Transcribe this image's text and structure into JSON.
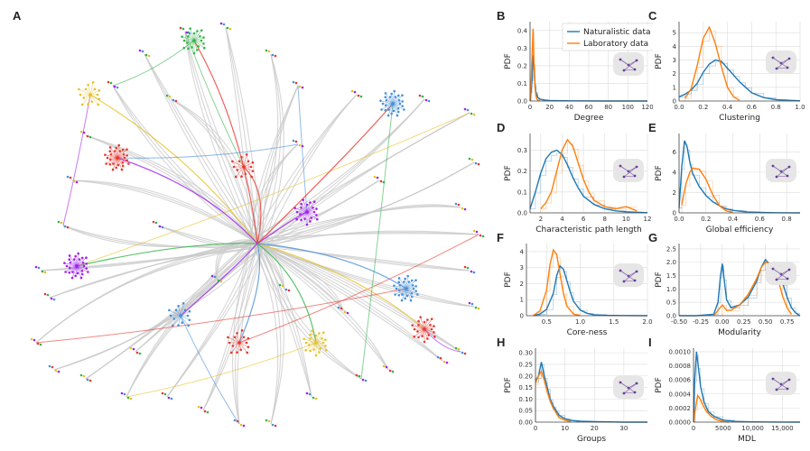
{
  "panel_letters": [
    "A",
    "B",
    "C",
    "D",
    "E",
    "F",
    "G",
    "H",
    "I"
  ],
  "colors": {
    "naturalistic": "#1f77b4",
    "laboratory": "#ff7f0e",
    "network_edge": "#c8c8c8",
    "cluster_red": "#e8382f",
    "cluster_purple": "#a020f0",
    "cluster_green": "#33b54a",
    "cluster_blue": "#4a90d9",
    "cluster_yellow": "#e6c229",
    "inset_bg": "#e6e6e6"
  },
  "legend": {
    "naturalistic": "Naturalistic data",
    "laboratory": "Laboratory data"
  },
  "chart_data": [
    {
      "panel": "B",
      "type": "line",
      "xlabel": "Degree",
      "ylabel": "PDF",
      "xlim": [
        0,
        120
      ],
      "ylim": [
        0,
        0.45
      ],
      "xticks": [
        "0",
        "20",
        "40",
        "60",
        "80",
        "100",
        "120"
      ],
      "yticks": [
        "0.0",
        "0.1",
        "0.2",
        "0.3",
        "0.4"
      ],
      "xtickvals": [
        0,
        20,
        40,
        60,
        80,
        100,
        120
      ],
      "ytickvals": [
        0,
        0.1,
        0.2,
        0.3,
        0.4
      ],
      "legend": true,
      "series": [
        {
          "name": "Naturalistic data",
          "x": [
            0,
            1,
            2,
            3,
            4,
            5,
            6,
            8,
            10,
            15,
            20,
            40,
            80,
            120
          ],
          "y": [
            0,
            0.05,
            0.12,
            0.26,
            0.2,
            0.1,
            0.05,
            0.02,
            0.01,
            0.005,
            0.003,
            0.001,
            0,
            0
          ]
        },
        {
          "name": "Laboratory data",
          "x": [
            0,
            1,
            2,
            3,
            4,
            5,
            6,
            7,
            8,
            10
          ],
          "y": [
            0,
            0.1,
            0.25,
            0.41,
            0.22,
            0.08,
            0.03,
            0.01,
            0.005,
            0
          ]
        }
      ]
    },
    {
      "panel": "C",
      "type": "line",
      "xlabel": "Clustering",
      "ylabel": "PDF",
      "xlim": [
        0,
        1
      ],
      "ylim": [
        0,
        5.8
      ],
      "xticks": [
        "0.0",
        "0.2",
        "0.4",
        "0.6",
        "0.8",
        "1.0"
      ],
      "yticks": [
        "0",
        "1",
        "2",
        "3",
        "4",
        "5"
      ],
      "xtickvals": [
        0,
        0.2,
        0.4,
        0.6,
        0.8,
        1.0
      ],
      "ytickvals": [
        0,
        1,
        2,
        3,
        4,
        5
      ],
      "series": [
        {
          "name": "Naturalistic data",
          "x": [
            0,
            0.05,
            0.1,
            0.15,
            0.2,
            0.25,
            0.3,
            0.35,
            0.4,
            0.45,
            0.5,
            0.55,
            0.6,
            0.7,
            0.8,
            0.9,
            1.0
          ],
          "y": [
            0.3,
            0.5,
            0.8,
            1.3,
            2.1,
            2.7,
            3.0,
            2.9,
            2.4,
            1.9,
            1.4,
            1.0,
            0.6,
            0.25,
            0.1,
            0.05,
            0.02
          ]
        },
        {
          "name": "Laboratory data",
          "x": [
            0.05,
            0.1,
            0.15,
            0.2,
            0.25,
            0.3,
            0.35,
            0.4,
            0.45,
            0.5
          ],
          "y": [
            0.2,
            0.9,
            2.6,
            4.6,
            5.4,
            4.2,
            2.5,
            1.0,
            0.3,
            0.05
          ]
        }
      ]
    },
    {
      "panel": "D",
      "type": "line",
      "xlabel": "Characteristic path length",
      "ylabel": "PDF",
      "xlim": [
        1,
        12
      ],
      "ylim": [
        0,
        0.38
      ],
      "xticks": [
        "2",
        "4",
        "6",
        "8",
        "10",
        "12"
      ],
      "yticks": [
        "0.0",
        "0.1",
        "0.2",
        "0.3"
      ],
      "xtickvals": [
        2,
        4,
        6,
        8,
        10,
        12
      ],
      "ytickvals": [
        0,
        0.1,
        0.2,
        0.3
      ],
      "series": [
        {
          "name": "Naturalistic data",
          "x": [
            1,
            1.5,
            2,
            2.5,
            3,
            3.5,
            4,
            4.5,
            5,
            5.5,
            6,
            7,
            8,
            9,
            10,
            11,
            12
          ],
          "y": [
            0.02,
            0.1,
            0.19,
            0.26,
            0.29,
            0.3,
            0.28,
            0.23,
            0.17,
            0.12,
            0.08,
            0.04,
            0.02,
            0.01,
            0.005,
            0.003,
            0.001
          ]
        },
        {
          "name": "Laboratory data",
          "x": [
            2,
            2.5,
            3,
            3.5,
            4,
            4.5,
            5,
            5.5,
            6,
            6.5,
            7,
            8,
            9,
            10,
            11
          ],
          "y": [
            0.02,
            0.05,
            0.1,
            0.2,
            0.3,
            0.35,
            0.32,
            0.24,
            0.16,
            0.1,
            0.06,
            0.03,
            0.02,
            0.03,
            0.01
          ]
        }
      ]
    },
    {
      "panel": "E",
      "type": "line",
      "xlabel": "Global efficiency",
      "ylabel": "PDF",
      "xlim": [
        0,
        0.9
      ],
      "ylim": [
        0,
        7.8
      ],
      "xticks": [
        "0.0",
        "0.2",
        "0.4",
        "0.6",
        "0.8"
      ],
      "yticks": [
        "0",
        "2",
        "4",
        "6"
      ],
      "xtickvals": [
        0,
        0.2,
        0.4,
        0.6,
        0.8
      ],
      "ytickvals": [
        0,
        2,
        4,
        6
      ],
      "series": [
        {
          "name": "Naturalistic data",
          "x": [
            0,
            0.02,
            0.04,
            0.06,
            0.08,
            0.1,
            0.15,
            0.2,
            0.25,
            0.3,
            0.35,
            0.4,
            0.5,
            0.6,
            0.7,
            0.8,
            0.9
          ],
          "y": [
            0.5,
            4.5,
            7.1,
            6.5,
            5.0,
            3.9,
            2.6,
            1.7,
            1.1,
            0.7,
            0.4,
            0.25,
            0.1,
            0.05,
            0.02,
            0.01,
            0
          ]
        },
        {
          "name": "Laboratory data",
          "x": [
            0.02,
            0.05,
            0.08,
            0.1,
            0.15,
            0.2,
            0.25,
            0.3,
            0.35,
            0.4
          ],
          "y": [
            0.8,
            2.8,
            4.0,
            4.4,
            4.3,
            3.3,
            1.8,
            0.7,
            0.2,
            0.05
          ]
        }
      ]
    },
    {
      "panel": "F",
      "type": "line",
      "xlabel": "Core-ness",
      "ylabel": "PDF",
      "xlim": [
        0.2,
        2.0
      ],
      "ylim": [
        0,
        4.5
      ],
      "xticks": [
        "0.5",
        "1.0",
        "1.5",
        "2.0"
      ],
      "yticks": [
        "0",
        "1",
        "2",
        "3",
        "4"
      ],
      "xtickvals": [
        0.5,
        1.0,
        1.5,
        2.0
      ],
      "ytickvals": [
        0,
        1,
        2,
        3,
        4
      ],
      "series": [
        {
          "name": "Naturalistic data",
          "x": [
            0.3,
            0.4,
            0.5,
            0.6,
            0.65,
            0.7,
            0.75,
            0.8,
            0.85,
            0.9,
            1.0,
            1.1,
            1.2,
            1.4,
            1.6,
            2.0
          ],
          "y": [
            0,
            0.1,
            0.4,
            1.4,
            2.5,
            3.1,
            2.9,
            2.2,
            1.5,
            0.9,
            0.35,
            0.15,
            0.06,
            0.02,
            0.01,
            0
          ]
        },
        {
          "name": "Laboratory data",
          "x": [
            0.3,
            0.4,
            0.5,
            0.55,
            0.6,
            0.65,
            0.7,
            0.75,
            0.8,
            0.9,
            1.0
          ],
          "y": [
            0,
            0.3,
            1.6,
            3.2,
            4.1,
            3.8,
            2.6,
            1.4,
            0.6,
            0.1,
            0
          ]
        }
      ]
    },
    {
      "panel": "G",
      "type": "line",
      "xlabel": "Modularity",
      "ylabel": "PDF",
      "xlim": [
        -0.5,
        0.9
      ],
      "ylim": [
        0,
        2.7
      ],
      "xticks": [
        "-0.50",
        "-0.25",
        "0.00",
        "0.25",
        "0.50",
        "0.75"
      ],
      "yticks": [
        "0.0",
        "0.5",
        "1.0",
        "1.5",
        "2.0",
        "2.5"
      ],
      "xtickvals": [
        -0.5,
        -0.25,
        0,
        0.25,
        0.5,
        0.75
      ],
      "ytickvals": [
        0,
        0.5,
        1.0,
        1.5,
        2.0,
        2.5
      ],
      "series": [
        {
          "name": "Naturalistic data",
          "x": [
            -0.5,
            -0.3,
            -0.1,
            -0.05,
            -0.02,
            0,
            0.02,
            0.05,
            0.1,
            0.2,
            0.3,
            0.4,
            0.45,
            0.5,
            0.55,
            0.6,
            0.65,
            0.7,
            0.75,
            0.8,
            0.85,
            0.9
          ],
          "y": [
            0,
            0,
            0.05,
            0.5,
            1.5,
            1.95,
            1.4,
            0.6,
            0.3,
            0.4,
            0.7,
            1.3,
            1.8,
            2.1,
            1.9,
            2.0,
            1.7,
            1.2,
            0.7,
            0.3,
            0.1,
            0
          ]
        },
        {
          "name": "Laboratory data",
          "x": [
            -0.1,
            0,
            0.05,
            0.1,
            0.2,
            0.3,
            0.4,
            0.45,
            0.5,
            0.55,
            0.6,
            0.65,
            0.7,
            0.75,
            0.8
          ],
          "y": [
            0,
            0.4,
            0.2,
            0.2,
            0.4,
            0.8,
            1.4,
            1.8,
            2.0,
            1.95,
            1.8,
            1.3,
            0.7,
            0.3,
            0.05
          ]
        }
      ]
    },
    {
      "panel": "H",
      "type": "line",
      "xlabel": "Groups",
      "ylabel": "PDF",
      "xlim": [
        0,
        38
      ],
      "ylim": [
        0,
        0.32
      ],
      "xticks": [
        "0",
        "10",
        "20",
        "30"
      ],
      "yticks": [
        "0.00",
        "0.05",
        "0.10",
        "0.15",
        "0.20",
        "0.25",
        "0.30"
      ],
      "xtickvals": [
        0,
        10,
        20,
        30
      ],
      "ytickvals": [
        0,
        0.05,
        0.1,
        0.15,
        0.2,
        0.25,
        0.3
      ],
      "series": [
        {
          "name": "Naturalistic data",
          "x": [
            0,
            1,
            2,
            3,
            4,
            5,
            6,
            7,
            8,
            10,
            12,
            15,
            20,
            25,
            30,
            38
          ],
          "y": [
            0.18,
            0.2,
            0.26,
            0.2,
            0.15,
            0.1,
            0.07,
            0.05,
            0.03,
            0.015,
            0.008,
            0.004,
            0.002,
            0.001,
            0,
            0
          ]
        },
        {
          "name": "Laboratory data",
          "x": [
            0,
            1,
            2,
            3,
            4,
            5,
            6,
            7,
            8,
            10,
            12
          ],
          "y": [
            0.17,
            0.2,
            0.22,
            0.18,
            0.13,
            0.09,
            0.06,
            0.04,
            0.02,
            0.008,
            0.002
          ]
        }
      ]
    },
    {
      "panel": "I",
      "type": "line",
      "xlabel": "MDL",
      "ylabel": "PDF",
      "xlim": [
        0,
        18000
      ],
      "ylim": [
        0,
        0.00105
      ],
      "xticks": [
        "0",
        "5000",
        "10,000",
        "15,000"
      ],
      "yticks": [
        "0.0000",
        "0.0002",
        "0.0004",
        "0.0006",
        "0.0008",
        "0.0010"
      ],
      "xtickvals": [
        0,
        5000,
        10000,
        15000
      ],
      "ytickvals": [
        0,
        0.0002,
        0.0004,
        0.0006,
        0.0008,
        0.001
      ],
      "series": [
        {
          "name": "Naturalistic data",
          "x": [
            0,
            200,
            500,
            800,
            1200,
            1800,
            2500,
            3500,
            5000,
            7000,
            10000,
            14000,
            18000
          ],
          "y": [
            0,
            0.0006,
            0.001,
            0.0008,
            0.0005,
            0.00028,
            0.00015,
            8e-05,
            3e-05,
            1e-05,
            4e-06,
            1e-06,
            0
          ]
        },
        {
          "name": "Laboratory data",
          "x": [
            0,
            300,
            700,
            1100,
            1600,
            2200,
            3000,
            4000,
            5000,
            6000
          ],
          "y": [
            0,
            0.00018,
            0.00038,
            0.00033,
            0.00024,
            0.00015,
            8e-05,
            3e-05,
            1e-05,
            0
          ]
        }
      ]
    }
  ]
}
